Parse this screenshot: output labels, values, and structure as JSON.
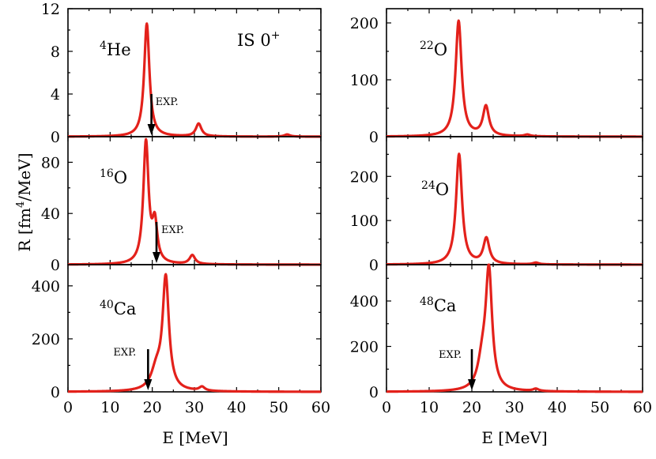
{
  "figure": {
    "ylabel_prefix": "R [fm",
    "ylabel_sup": "4",
    "ylabel_suffix": "/MeV]",
    "xlabel": "E [MeV]",
    "annotation_main": "IS 0",
    "annotation_sup": "+",
    "exp_label": "EXP.",
    "curve_color": "#e3211b",
    "arrow_color": "#000000"
  },
  "chart_data": [
    {
      "type": "line",
      "panel": "left-top",
      "nucleus_mass": "4",
      "nucleus_symbol": "He",
      "xlim": [
        0,
        60
      ],
      "ylim": [
        0,
        12
      ],
      "xticks": [
        "0",
        "10",
        "20",
        "30",
        "40",
        "50",
        "60"
      ],
      "yticks": [
        "0",
        "4",
        "8",
        "12"
      ],
      "show_xticklabels": false,
      "peaks": [
        [
          18.7,
          10.6,
          0.75
        ],
        [
          31.0,
          1.2,
          0.8
        ],
        [
          52.0,
          0.2,
          0.8
        ]
      ],
      "exp": 19.8
    },
    {
      "type": "line",
      "panel": "left-middle",
      "nucleus_mass": "16",
      "nucleus_symbol": "O",
      "xlim": [
        0,
        60
      ],
      "ylim": [
        0,
        100
      ],
      "xticks": [
        "0",
        "10",
        "20",
        "30",
        "40",
        "50",
        "60"
      ],
      "yticks": [
        "0",
        "40",
        "80"
      ],
      "show_xticklabels": false,
      "peaks": [
        [
          18.5,
          95,
          0.75
        ],
        [
          20.6,
          30,
          0.7
        ],
        [
          29.5,
          7,
          0.8
        ]
      ],
      "exp": 21.0
    },
    {
      "type": "line",
      "panel": "left-bottom",
      "nucleus_mass": "40",
      "nucleus_symbol": "Ca",
      "xlim": [
        0,
        60
      ],
      "ylim": [
        0,
        480
      ],
      "xticks": [
        "0",
        "10",
        "20",
        "30",
        "40",
        "50",
        "60"
      ],
      "yticks": [
        "0",
        "200",
        "400"
      ],
      "show_xticklabels": true,
      "peaks": [
        [
          23.2,
          420,
          0.9
        ],
        [
          21.0,
          75,
          1.5
        ],
        [
          31.8,
          15,
          0.8
        ]
      ],
      "exp": 19.0
    },
    {
      "type": "line",
      "panel": "right-top",
      "nucleus_mass": "22",
      "nucleus_symbol": "O",
      "xlim": [
        0,
        60
      ],
      "ylim": [
        0,
        225
      ],
      "xticks": [
        "0",
        "10",
        "20",
        "30",
        "40",
        "50",
        "60"
      ],
      "yticks": [
        "0",
        "100",
        "200"
      ],
      "show_xticklabels": false,
      "peaks": [
        [
          16.9,
          203,
          0.85
        ],
        [
          23.3,
          52,
          0.85
        ],
        [
          33.0,
          3,
          0.8
        ]
      ],
      "exp": null
    },
    {
      "type": "line",
      "panel": "right-middle",
      "nucleus_mass": "24",
      "nucleus_symbol": "O",
      "xlim": [
        0,
        60
      ],
      "ylim": [
        0,
        290
      ],
      "xticks": [
        "0",
        "10",
        "20",
        "30",
        "40",
        "50",
        "60"
      ],
      "yticks": [
        "0",
        "100",
        "200"
      ],
      "show_xticklabels": false,
      "peaks": [
        [
          17.0,
          250,
          0.85
        ],
        [
          23.4,
          58,
          0.85
        ],
        [
          35.0,
          4,
          0.8
        ]
      ],
      "exp": null
    },
    {
      "type": "line",
      "panel": "right-bottom",
      "nucleus_mass": "48",
      "nucleus_symbol": "Ca",
      "xlim": [
        0,
        60
      ],
      "ylim": [
        0,
        560
      ],
      "xticks": [
        "0",
        "10",
        "20",
        "30",
        "40",
        "50",
        "60"
      ],
      "yticks": [
        "0",
        "200",
        "400"
      ],
      "show_xticklabels": true,
      "peaks": [
        [
          24.0,
          510,
          0.9
        ],
        [
          22.5,
          120,
          1.3
        ],
        [
          35.0,
          10,
          0.8
        ]
      ],
      "exp": 20.0
    }
  ]
}
